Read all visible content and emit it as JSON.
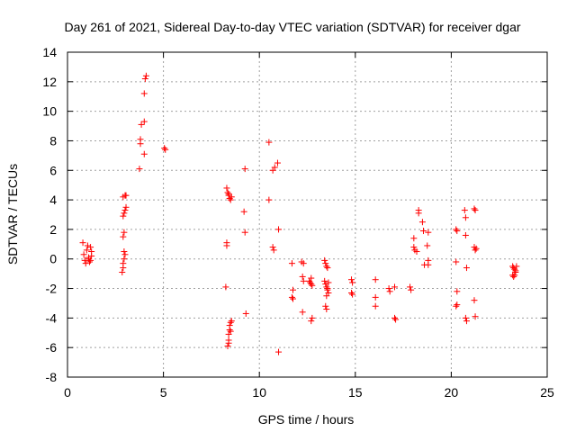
{
  "chart_data": {
    "type": "scatter",
    "title": "Day 261 of 2021, Sidereal Day-to-day VTEC variation (SDTVAR) for receiver dgar",
    "xlabel": "GPS time / hours",
    "ylabel": "SDTVAR / TECUs",
    "xlim": [
      0,
      25
    ],
    "ylim": [
      -8,
      14
    ],
    "xticks": [
      "0",
      "5",
      "10",
      "15",
      "20",
      "25"
    ],
    "yticks": [
      "-8",
      "-6",
      "-4",
      "-2",
      "0",
      "2",
      "4",
      "6",
      "8",
      "10",
      "12",
      "14"
    ],
    "grid": true,
    "marker": "+",
    "color": "#ff0000",
    "points": [
      [
        0.8,
        1.1
      ],
      [
        0.85,
        0.3
      ],
      [
        0.9,
        -0.1
      ],
      [
        0.95,
        -0.3
      ],
      [
        1.0,
        0.6
      ],
      [
        1.05,
        0.9
      ],
      [
        1.1,
        0.1
      ],
      [
        1.15,
        -0.2
      ],
      [
        1.2,
        0.8
      ],
      [
        1.25,
        0.5
      ],
      [
        1.1,
        0.0
      ],
      [
        1.2,
        -0.1
      ],
      [
        1.25,
        0.2
      ],
      [
        2.85,
        -0.9
      ],
      [
        2.9,
        -0.6
      ],
      [
        2.9,
        -0.3
      ],
      [
        2.95,
        0.0
      ],
      [
        3.0,
        0.3
      ],
      [
        2.95,
        0.5
      ],
      [
        2.9,
        1.5
      ],
      [
        2.95,
        1.8
      ],
      [
        2.9,
        2.9
      ],
      [
        2.95,
        3.1
      ],
      [
        3.0,
        3.3
      ],
      [
        3.05,
        3.5
      ],
      [
        2.9,
        4.2
      ],
      [
        3.0,
        4.3
      ],
      [
        3.05,
        4.3
      ],
      [
        3.75,
        6.1
      ],
      [
        3.8,
        7.8
      ],
      [
        3.8,
        8.1
      ],
      [
        3.85,
        9.1
      ],
      [
        4.0,
        9.3
      ],
      [
        4.0,
        11.2
      ],
      [
        4.05,
        12.2
      ],
      [
        4.1,
        12.4
      ],
      [
        4.0,
        7.1
      ],
      [
        5.05,
        7.5
      ],
      [
        5.1,
        7.4
      ],
      [
        8.25,
        -1.9
      ],
      [
        8.3,
        0.9
      ],
      [
        8.3,
        1.1
      ],
      [
        8.3,
        4.8
      ],
      [
        8.35,
        4.5
      ],
      [
        8.4,
        4.3
      ],
      [
        8.45,
        4.1
      ],
      [
        8.5,
        4.0
      ],
      [
        8.55,
        4.2
      ],
      [
        8.4,
        4.4
      ],
      [
        8.35,
        -5.9
      ],
      [
        8.4,
        -5.5
      ],
      [
        8.4,
        -5.1
      ],
      [
        8.45,
        -4.8
      ],
      [
        8.45,
        -4.5
      ],
      [
        8.5,
        -4.3
      ],
      [
        8.55,
        -4.2
      ],
      [
        8.4,
        -5.7
      ],
      [
        8.5,
        -4.9
      ],
      [
        9.25,
        6.1
      ],
      [
        9.2,
        3.2
      ],
      [
        9.25,
        1.8
      ],
      [
        9.3,
        -3.7
      ],
      [
        10.5,
        7.9
      ],
      [
        10.5,
        4.0
      ],
      [
        10.7,
        6.0
      ],
      [
        10.8,
        6.2
      ],
      [
        10.95,
        6.5
      ],
      [
        10.7,
        0.8
      ],
      [
        10.75,
        0.6
      ],
      [
        11.0,
        2.0
      ],
      [
        11.0,
        -6.3
      ],
      [
        11.7,
        -0.3
      ],
      [
        11.75,
        -2.1
      ],
      [
        11.7,
        -2.6
      ],
      [
        11.75,
        -2.7
      ],
      [
        12.2,
        -0.2
      ],
      [
        12.3,
        -0.3
      ],
      [
        12.25,
        -1.2
      ],
      [
        12.3,
        -1.5
      ],
      [
        12.25,
        -3.6
      ],
      [
        12.6,
        -1.5
      ],
      [
        12.65,
        -1.6
      ],
      [
        12.7,
        -1.7
      ],
      [
        12.75,
        -1.8
      ],
      [
        12.7,
        -1.3
      ],
      [
        12.75,
        -4.0
      ],
      [
        12.7,
        -4.2
      ],
      [
        13.4,
        -0.1
      ],
      [
        13.45,
        -0.3
      ],
      [
        13.5,
        -0.5
      ],
      [
        13.55,
        -0.6
      ],
      [
        13.4,
        -1.5
      ],
      [
        13.45,
        -1.7
      ],
      [
        13.5,
        -1.9
      ],
      [
        13.55,
        -2.1
      ],
      [
        13.6,
        -2.3
      ],
      [
        13.5,
        -2.5
      ],
      [
        13.45,
        -3.2
      ],
      [
        13.5,
        -3.4
      ],
      [
        13.6,
        -1.6
      ],
      [
        13.55,
        -2.0
      ],
      [
        14.8,
        -1.4
      ],
      [
        14.85,
        -1.6
      ],
      [
        14.8,
        -2.3
      ],
      [
        14.85,
        -2.4
      ],
      [
        16.05,
        -1.4
      ],
      [
        16.05,
        -2.6
      ],
      [
        16.05,
        -3.2
      ],
      [
        16.75,
        -2.0
      ],
      [
        16.8,
        -2.2
      ],
      [
        17.05,
        -1.9
      ],
      [
        17.05,
        -4.0
      ],
      [
        17.1,
        -4.1
      ],
      [
        17.85,
        -1.9
      ],
      [
        17.9,
        -2.1
      ],
      [
        18.05,
        1.4
      ],
      [
        18.05,
        0.8
      ],
      [
        18.1,
        0.6
      ],
      [
        18.2,
        0.5
      ],
      [
        18.3,
        3.3
      ],
      [
        18.3,
        3.1
      ],
      [
        18.5,
        2.5
      ],
      [
        18.55,
        1.9
      ],
      [
        18.6,
        -0.4
      ],
      [
        18.8,
        1.8
      ],
      [
        18.75,
        0.9
      ],
      [
        18.8,
        -0.1
      ],
      [
        18.8,
        -0.4
      ],
      [
        20.25,
        2.0
      ],
      [
        20.3,
        1.9
      ],
      [
        20.25,
        -0.2
      ],
      [
        20.3,
        -2.2
      ],
      [
        20.3,
        -3.1
      ],
      [
        20.25,
        -3.2
      ],
      [
        20.7,
        3.3
      ],
      [
        20.75,
        2.8
      ],
      [
        20.75,
        1.6
      ],
      [
        20.8,
        -0.6
      ],
      [
        20.75,
        -4.0
      ],
      [
        20.8,
        -4.2
      ],
      [
        21.2,
        3.4
      ],
      [
        21.25,
        3.3
      ],
      [
        21.2,
        0.8
      ],
      [
        21.25,
        0.6
      ],
      [
        21.3,
        0.7
      ],
      [
        21.2,
        -2.8
      ],
      [
        21.25,
        -3.9
      ],
      [
        23.2,
        -0.5
      ],
      [
        23.25,
        -0.6
      ],
      [
        23.3,
        -0.7
      ],
      [
        23.35,
        -0.8
      ],
      [
        23.4,
        -0.5
      ],
      [
        23.25,
        -1.2
      ],
      [
        23.3,
        -1.1
      ],
      [
        23.35,
        -0.9
      ],
      [
        23.2,
        -1.1
      ]
    ]
  }
}
